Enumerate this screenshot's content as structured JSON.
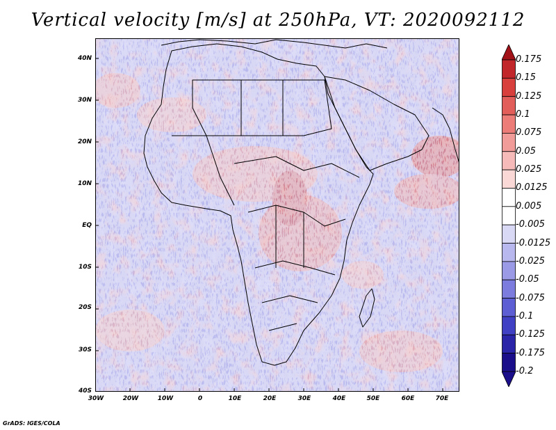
{
  "title": "Vertical velocity [m/s] at 250hPa, VT: 2020092112",
  "credit": "GrADS: IGES/COLA",
  "map": {
    "region": "Africa",
    "lon_range": [
      -30,
      75
    ],
    "lat_range": [
      -40,
      45
    ],
    "lat_ticks": [
      "40N",
      "30N",
      "20N",
      "10N",
      "EQ",
      "10S",
      "20S",
      "30S",
      "40S"
    ],
    "lon_ticks": [
      "30W",
      "20W",
      "10W",
      "0",
      "10E",
      "20E",
      "30E",
      "40E",
      "50E",
      "60E",
      "70E"
    ]
  },
  "colorbar": {
    "levels": [
      "0.175",
      "0.15",
      "0.125",
      "0.1",
      "0.075",
      "0.05",
      "0.025",
      "0.0125",
      "0.005",
      "-0.005",
      "-0.0125",
      "-0.025",
      "-0.05",
      "-0.075",
      "-0.1",
      "-0.125",
      "-0.175",
      "-0.2"
    ],
    "colors": [
      "#a01218",
      "#c0262a",
      "#d8403e",
      "#e25e5a",
      "#eb7c78",
      "#f19c98",
      "#f6bbb8",
      "#fad8d6",
      "#ffffff",
      "#ffffff",
      "#d9d9f5",
      "#b8b8ee",
      "#9a9ae6",
      "#7c7cde",
      "#5e5ed4",
      "#4040c4",
      "#2a24a8",
      "#1a0e8a",
      "#1a0e8a"
    ]
  }
}
